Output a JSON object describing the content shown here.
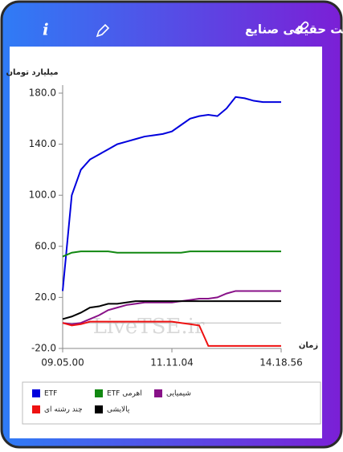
{
  "header": {
    "title": "پول درشت حقیقی صنایع"
  },
  "chart_data": {
    "type": "line",
    "y_label": "میلیارد تومان",
    "x_label": "زمان",
    "watermark": "LiveTSE.ir",
    "x": [
      "09.05.00",
      null,
      null,
      null,
      null,
      null,
      null,
      null,
      null,
      null,
      null,
      null,
      "11.11.04",
      null,
      null,
      null,
      null,
      null,
      null,
      null,
      null,
      null,
      null,
      null,
      "14.18.56"
    ],
    "ylim": [
      -20,
      180
    ],
    "yticks": [
      {
        "value": -20,
        "label": "-20.0"
      },
      {
        "value": 20,
        "label": "20.0"
      },
      {
        "value": 60,
        "label": "60.0"
      },
      {
        "value": 100,
        "label": "100.0"
      },
      {
        "value": 140,
        "label": "140.0"
      },
      {
        "value": 180,
        "label": "180.0"
      }
    ],
    "series": [
      {
        "name": "ETF",
        "color": "#0000dd",
        "values": [
          25,
          100,
          120,
          128,
          132,
          136,
          140,
          142,
          144,
          146,
          147,
          148,
          150,
          155,
          160,
          162,
          163,
          162,
          168,
          177,
          176,
          174,
          173,
          173,
          173
        ]
      },
      {
        "name": "ETF اهرمی",
        "color": "#118811",
        "values": [
          52,
          55,
          56,
          56,
          56,
          56,
          55,
          55,
          55,
          55,
          55,
          55,
          55,
          55,
          56,
          56,
          56,
          56,
          56,
          56,
          56,
          56,
          56,
          56,
          56
        ]
      },
      {
        "name": "شیمیایی",
        "color": "#881188",
        "values": [
          0,
          -1,
          0,
          3,
          6,
          10,
          12,
          14,
          15,
          16,
          16,
          16,
          16,
          17,
          18,
          19,
          19,
          20,
          23,
          25,
          25,
          25,
          25,
          25,
          25
        ]
      },
      {
        "name": "چند رشته ای",
        "color": "#ee1111",
        "values": [
          0,
          -2,
          -1,
          1,
          1,
          1,
          1,
          1,
          1,
          1,
          1,
          1,
          1,
          0,
          -1,
          -2,
          -18,
          -18,
          -18,
          -18,
          -18,
          -18,
          -18,
          -18,
          -18
        ]
      },
      {
        "name": "پالایشی",
        "color": "#000000",
        "values": [
          3,
          5,
          8,
          12,
          13,
          15,
          15,
          16,
          17,
          17,
          17,
          17,
          17,
          17,
          17,
          17,
          17,
          17,
          17,
          17,
          17,
          17,
          17,
          17,
          17
        ]
      }
    ]
  }
}
